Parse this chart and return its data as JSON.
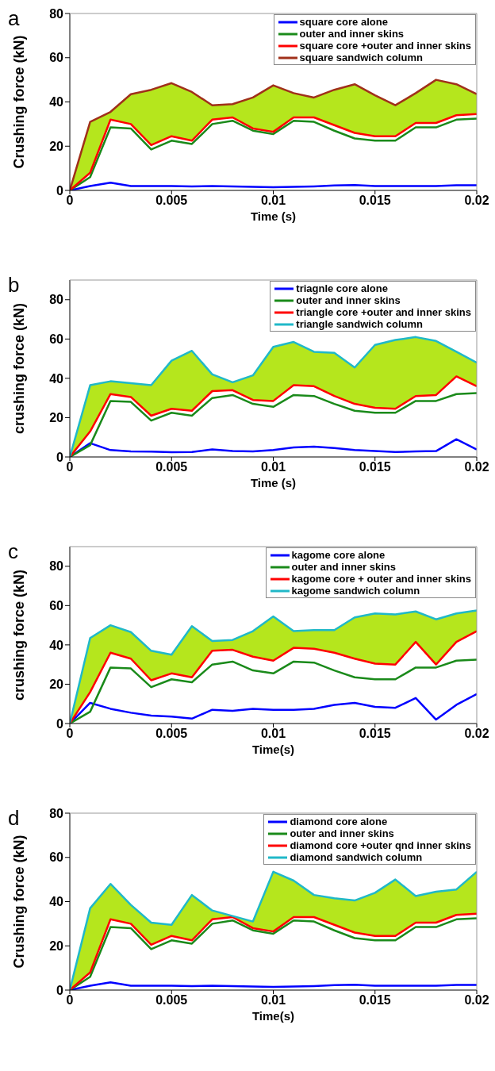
{
  "chart_data": [
    {
      "type": "line",
      "title": "a",
      "xlabel": "Time (s)",
      "ylabel": "Crushing force (kN)",
      "x": [
        0,
        0.001,
        0.002,
        0.003,
        0.004,
        0.005,
        0.006,
        0.007,
        0.008,
        0.009,
        0.01,
        0.011,
        0.012,
        0.013,
        0.014,
        0.015,
        0.016,
        0.017,
        0.018,
        0.019,
        0.02
      ],
      "xlim": [
        0,
        0.02
      ],
      "xticks": [
        0,
        0.005,
        0.01,
        0.015,
        0.02
      ],
      "ylim": [
        0,
        80
      ],
      "yticks": [
        0,
        20,
        40,
        60,
        80
      ],
      "legend": "top right",
      "series": [
        {
          "name": "square core alone",
          "color": "#0000ff",
          "values": [
            0,
            2,
            3.5,
            2,
            2,
            2,
            1.8,
            2,
            1.8,
            1.6,
            1.4,
            1.6,
            1.8,
            2.2,
            2.4,
            2,
            2,
            2,
            2,
            2.3,
            2.3
          ]
        },
        {
          "name": "outer and inner skins",
          "color": "#1a8a1a",
          "values": [
            0,
            6,
            28.5,
            28,
            18.5,
            22.5,
            21,
            30,
            31.5,
            27,
            25.5,
            31.5,
            31,
            27,
            23.5,
            22.5,
            22.5,
            28.5,
            28.5,
            32,
            32.5
          ]
        },
        {
          "name": "square core +outer and inner skins",
          "color": "#ff0000",
          "values": [
            0,
            8,
            32,
            30,
            20.5,
            24.5,
            22.5,
            32,
            33,
            28,
            26.5,
            33,
            33,
            29.5,
            26,
            24.5,
            24.5,
            30.5,
            30.5,
            34,
            34.5
          ]
        },
        {
          "name": "square sandwich column",
          "color": "#a0301a",
          "values": [
            0,
            31,
            35.5,
            43.5,
            45.5,
            48.5,
            44.5,
            38.5,
            39,
            42,
            47.5,
            44,
            42,
            45.5,
            48,
            43,
            38.5,
            44,
            50,
            48,
            43.5
          ],
          "lower": [
            0,
            8,
            32,
            30,
            20.5,
            24.5,
            22.5,
            32,
            33,
            28,
            26.5,
            33,
            33,
            29.5,
            26,
            24.5,
            24.5,
            30.5,
            30.5,
            34,
            34.5
          ],
          "upper": [
            0,
            31,
            35.5,
            43.5,
            45.5,
            48.5,
            44.5,
            38.5,
            39,
            42,
            47.5,
            44,
            42,
            45.5,
            48,
            43,
            38.5,
            44,
            50,
            48,
            43.5
          ]
        }
      ]
    },
    {
      "type": "line",
      "title": "b",
      "xlabel": "Time (s)",
      "ylabel": "crushing force (kN)",
      "x": [
        0,
        0.001,
        0.002,
        0.003,
        0.004,
        0.005,
        0.006,
        0.007,
        0.008,
        0.009,
        0.01,
        0.011,
        0.012,
        0.013,
        0.014,
        0.015,
        0.016,
        0.017,
        0.018,
        0.019,
        0.02
      ],
      "xlim": [
        0,
        0.02
      ],
      "xticks": [
        0,
        0.005,
        0.01,
        0.015,
        0.02
      ],
      "ylim": [
        0,
        90
      ],
      "yticks": [
        0,
        20,
        40,
        60,
        80
      ],
      "legend": "top right",
      "series": [
        {
          "name": "triagnle core alone",
          "color": "#0000ff",
          "values": [
            0,
            7,
            3.5,
            2.8,
            2.7,
            2.4,
            2.5,
            3.8,
            3,
            2.8,
            3.5,
            4.8,
            5.2,
            4.5,
            3.5,
            3,
            2.5,
            2.8,
            3,
            9,
            3.8
          ]
        },
        {
          "name": "outer and inner skins",
          "color": "#1a8a1a",
          "values": [
            0,
            6,
            28.5,
            28,
            18.5,
            22.5,
            21,
            30,
            31.5,
            27,
            25.5,
            31.5,
            31,
            27,
            23.5,
            22.5,
            22.5,
            28.5,
            28.5,
            32,
            32.5
          ]
        },
        {
          "name": "triangle core +outer and inner skins",
          "color": "#ff0000",
          "values": [
            0,
            13,
            32,
            30.5,
            21,
            24.5,
            23.5,
            33.5,
            34,
            29,
            28.5,
            36.5,
            36,
            31,
            27,
            25,
            24.5,
            31,
            31.5,
            41,
            36
          ]
        },
        {
          "name": "triangle sandwich column",
          "color": "#20b8c8",
          "values": [
            0,
            36.5,
            38.5,
            37.5,
            36.5,
            49,
            54,
            42,
            38,
            41.5,
            56,
            58.5,
            53.5,
            53,
            45.5,
            57,
            59.5,
            61,
            59,
            53.5,
            48
          ],
          "lower": [
            0,
            13,
            32,
            30.5,
            21,
            24.5,
            23.5,
            33.5,
            34,
            29,
            28.5,
            36.5,
            36,
            31,
            27,
            25,
            24.5,
            31,
            31.5,
            41,
            36
          ],
          "upper": [
            0,
            36.5,
            38.5,
            37.5,
            36.5,
            49,
            54,
            42,
            38,
            41.5,
            56,
            58.5,
            53.5,
            53,
            45.5,
            57,
            59.5,
            61,
            59,
            53.5,
            48
          ]
        }
      ]
    },
    {
      "type": "line",
      "title": "c",
      "xlabel": "Time(s)",
      "ylabel": "crushing force (kN)",
      "x": [
        0,
        0.001,
        0.002,
        0.003,
        0.004,
        0.005,
        0.006,
        0.007,
        0.008,
        0.009,
        0.01,
        0.011,
        0.012,
        0.013,
        0.014,
        0.015,
        0.016,
        0.017,
        0.018,
        0.019,
        0.02
      ],
      "xlim": [
        0,
        0.02
      ],
      "xticks": [
        0,
        0.005,
        0.01,
        0.015,
        0.02
      ],
      "ylim": [
        0,
        90
      ],
      "yticks": [
        0,
        20,
        40,
        60,
        80
      ],
      "legend": "top right",
      "series": [
        {
          "name": "kagome core alone",
          "color": "#0000ff",
          "values": [
            0,
            10.5,
            7.5,
            5.5,
            4,
            3.5,
            2.5,
            7,
            6.5,
            7.5,
            7,
            7,
            7.5,
            9.5,
            10.5,
            8.5,
            8,
            13,
            2,
            9.5,
            15
          ]
        },
        {
          "name": "outer and inner skins",
          "color": "#1a8a1a",
          "values": [
            0,
            6,
            28.5,
            28,
            18.5,
            22.5,
            21,
            30,
            31.5,
            27,
            25.5,
            31.5,
            31,
            27,
            23.5,
            22.5,
            22.5,
            28.5,
            28.5,
            32,
            32.5
          ]
        },
        {
          "name": "kagome core + outer and inner skins",
          "color": "#ff0000",
          "values": [
            0,
            16,
            36,
            33,
            22,
            25.5,
            23.5,
            37,
            37.5,
            34,
            32,
            38.5,
            38,
            36,
            33,
            30.5,
            30,
            41.5,
            30,
            41.5,
            47
          ]
        },
        {
          "name": "kagome sandwich column",
          "color": "#20b8c8",
          "values": [
            0,
            43.5,
            50,
            46.5,
            37,
            35,
            49.5,
            42,
            42.5,
            47,
            54.5,
            47,
            47.5,
            47.5,
            54,
            56,
            55.5,
            57,
            53,
            56,
            57.5
          ],
          "lower": [
            0,
            16,
            36,
            33,
            22,
            25.5,
            23.5,
            37,
            37.5,
            34,
            32,
            38.5,
            38,
            36,
            33,
            30.5,
            30,
            41.5,
            30,
            41.5,
            47
          ],
          "upper": [
            0,
            43.5,
            50,
            46.5,
            37,
            35,
            49.5,
            42,
            42.5,
            47,
            54.5,
            47,
            47.5,
            47.5,
            54,
            56,
            55.5,
            57,
            53,
            56,
            57.5
          ]
        }
      ]
    },
    {
      "type": "line",
      "title": "d",
      "xlabel": "Time(s)",
      "ylabel": "Crushing force (kN)",
      "x": [
        0,
        0.001,
        0.002,
        0.003,
        0.004,
        0.005,
        0.006,
        0.007,
        0.008,
        0.009,
        0.01,
        0.011,
        0.012,
        0.013,
        0.014,
        0.015,
        0.016,
        0.017,
        0.018,
        0.019,
        0.02
      ],
      "xlim": [
        0,
        0.02
      ],
      "xticks": [
        0,
        0.005,
        0.01,
        0.015,
        0.02
      ],
      "ylim": [
        0,
        80
      ],
      "yticks": [
        0,
        20,
        40,
        60,
        80
      ],
      "legend": "top right",
      "series": [
        {
          "name": "diamond core alone",
          "color": "#0000ff",
          "values": [
            0,
            2,
            3.5,
            2,
            2,
            2,
            1.8,
            2,
            1.8,
            1.6,
            1.4,
            1.6,
            1.8,
            2.2,
            2.4,
            2,
            2,
            2,
            2,
            2.3,
            2.3
          ]
        },
        {
          "name": "outer and inner skins",
          "color": "#1a8a1a",
          "values": [
            0,
            6,
            28.5,
            28,
            18.5,
            22.5,
            21,
            30,
            31.5,
            27,
            25.5,
            31.5,
            31,
            27,
            23.5,
            22.5,
            22.5,
            28.5,
            28.5,
            32,
            32.5
          ]
        },
        {
          "name": "diamond core +outer qnd inner skins",
          "color": "#ff0000",
          "values": [
            0,
            8,
            32,
            30,
            20.5,
            24.5,
            22.5,
            32,
            33,
            28,
            26.5,
            33,
            33,
            29.5,
            26,
            24.5,
            24.5,
            30.5,
            30.5,
            34,
            34.5
          ]
        },
        {
          "name": "diamond sandwich column",
          "color": "#20b8c8",
          "values": [
            0,
            37,
            48,
            38.5,
            30.5,
            29.5,
            43,
            36,
            33.5,
            31,
            53.5,
            49.5,
            43,
            41.5,
            40.5,
            44,
            50,
            42.5,
            44.5,
            45.5,
            53.5
          ],
          "lower": [
            0,
            8,
            32,
            30,
            20.5,
            24.5,
            22.5,
            32,
            33,
            28,
            26.5,
            33,
            33,
            29.5,
            26,
            24.5,
            24.5,
            30.5,
            30.5,
            34,
            34.5
          ],
          "upper": [
            0,
            37,
            48,
            38.5,
            30.5,
            29.5,
            43,
            36,
            33.5,
            31,
            53.5,
            49.5,
            43,
            41.5,
            40.5,
            44,
            50,
            42.5,
            44.5,
            45.5,
            53.5
          ]
        }
      ]
    }
  ]
}
